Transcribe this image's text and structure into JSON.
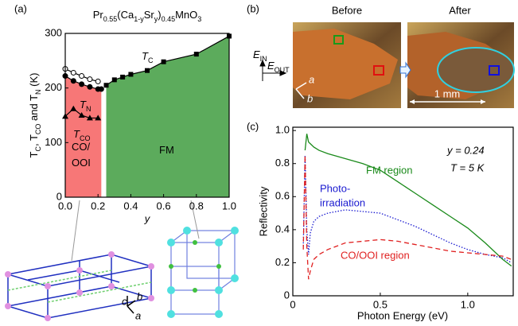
{
  "panel_labels": [
    "(a)",
    "(b)",
    "(c)"
  ],
  "panel_b": {
    "before": "Before",
    "after": "After",
    "e_in": {
      "text": "E",
      "sub": "IN"
    },
    "e_out": {
      "text": "E",
      "sub": "OUT"
    },
    "axis_a": "a",
    "axis_b": "b",
    "scale": "1 mm"
  },
  "structure_axes": [
    "c",
    "b",
    "a"
  ],
  "chart_data": [
    {
      "type": "line",
      "title": [
        {
          "text": "Pr",
          "sub": "0.55"
        },
        {
          "text": "(Ca",
          "sub": "1-y"
        },
        {
          "text": "Sr",
          "sub": "y"
        },
        {
          "text": ")",
          "sub": "0.45"
        },
        {
          "text": "MnO",
          "sub": "3"
        }
      ],
      "x_label": "y",
      "y_label": [
        {
          "text": "T",
          "sub": "C"
        },
        {
          "text": ", "
        },
        {
          "text": "T",
          "sub": "CO"
        },
        {
          "text": " and "
        },
        {
          "text": "T",
          "sub": "N"
        },
        {
          "text": " (K)"
        }
      ],
      "xlim": [
        0,
        1
      ],
      "ylim": [
        0,
        300
      ],
      "xticks": [
        {
          "value": 0,
          "label": "0.0"
        },
        0.2,
        0.4,
        0.6,
        0.8,
        {
          "value": 1,
          "label": "1.0"
        }
      ],
      "yticks": [
        0,
        100,
        200,
        300
      ],
      "series": [
        {
          "color": "#000000",
          "marker": "square",
          "area_color": "#5cab5c",
          "x": [
            0.25,
            0.3,
            0.35,
            0.4,
            0.5,
            0.6,
            0.8,
            1.0
          ],
          "values": [
            205,
            215,
            220,
            225,
            232,
            248,
            262,
            295
          ]
        },
        {
          "color": "#000000",
          "marker": "circle-open",
          "x": [
            0,
            0.05,
            0.1,
            0.15,
            0.2
          ],
          "values": [
            235,
            228,
            222,
            216,
            212
          ]
        },
        {
          "color": "#000000",
          "marker": "circle",
          "area_color": "#f77777",
          "x": [
            0,
            0.05,
            0.1,
            0.15,
            0.2,
            0.22
          ],
          "values": [
            222,
            213,
            207,
            202,
            198,
            198
          ]
        },
        {
          "color": "#000000",
          "marker": "triangle",
          "x": [
            0,
            0.05,
            0.1,
            0.15,
            0.2
          ],
          "values": [
            148,
            162,
            150,
            145,
            145
          ]
        }
      ],
      "annotations": [
        {
          "text": "T",
          "sub": "CO"
        },
        {
          "text": "T",
          "sub": "C"
        },
        {
          "text": "T",
          "sub": "N"
        },
        {
          "text": "CO/"
        },
        {
          "text": "OOI"
        },
        {
          "text": "FM"
        }
      ]
    },
    {
      "type": "line",
      "x_label": "Photon Energy (eV)",
      "y_label": "Reflectivity",
      "xlim": [
        0,
        1.26
      ],
      "ylim": [
        0,
        1.02
      ],
      "xticks": [
        0,
        0.5,
        {
          "value": 1,
          "label": "1.0"
        }
      ],
      "yticks": [
        0,
        0.2,
        0.4,
        0.6,
        0.8,
        {
          "value": 1,
          "label": "1.0"
        }
      ],
      "x": [
        0.06,
        0.07,
        0.08,
        0.09,
        0.1,
        0.12,
        0.15,
        0.2,
        0.3,
        0.4,
        0.5,
        0.6,
        0.7,
        0.8,
        0.9,
        1.0,
        1.1,
        1.2,
        1.25
      ],
      "series": [
        {
          "color": "#1a8a1a",
          "dash": "solid",
          "values": [
            null,
            0.88,
            0.98,
            0.93,
            0.92,
            0.9,
            0.88,
            0.86,
            0.83,
            0.8,
            0.76,
            0.69,
            0.62,
            0.55,
            0.48,
            0.41,
            0.32,
            0.22,
            0.18
          ]
        },
        {
          "color": "#1a1ad0",
          "dash": "dotted",
          "values": [
            0.3,
            0.85,
            0.4,
            0.25,
            0.38,
            0.45,
            0.48,
            0.5,
            0.52,
            0.51,
            0.5,
            0.46,
            0.42,
            0.37,
            0.32,
            0.28,
            0.25,
            0.23,
            0.2
          ]
        },
        {
          "color": "#e02020",
          "dash": "dashed",
          "values": [
            0.28,
            0.85,
            0.3,
            0.1,
            0.15,
            0.22,
            0.25,
            0.28,
            0.32,
            0.33,
            0.34,
            0.33,
            0.31,
            0.29,
            0.27,
            0.26,
            0.25,
            0.24,
            0.22
          ]
        }
      ],
      "annotations": [
        {
          "text": "FM region",
          "color": "#1a8a1a"
        },
        {
          "text": "Photo-",
          "color": "#1a1ad0"
        },
        {
          "text": "irradiation",
          "color": "#1a1ad0"
        },
        {
          "text": "CO/OOI region",
          "color": "#e02020"
        },
        {
          "text": "y = 0.24"
        },
        {
          "text": "T = 5 K"
        }
      ]
    }
  ]
}
